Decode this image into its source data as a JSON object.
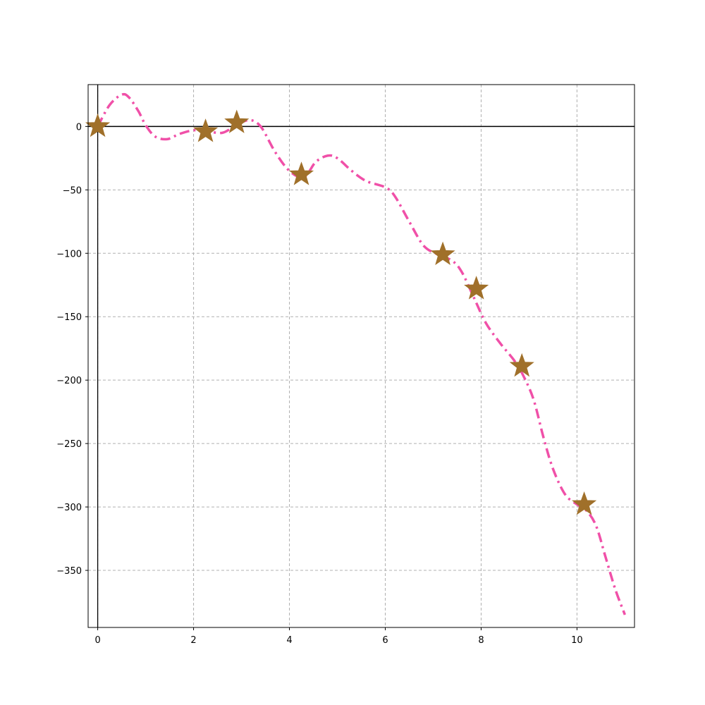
{
  "chart_data": {
    "type": "line",
    "title": "",
    "xlabel": "",
    "ylabel": "",
    "xlim": [
      -0.2,
      11.2
    ],
    "ylim": [
      -395,
      33
    ],
    "grid": true,
    "x_ticks": [
      0,
      2,
      4,
      6,
      8,
      10
    ],
    "y_ticks": [
      0,
      -50,
      -100,
      -150,
      -200,
      -250,
      -300,
      -350
    ],
    "x_tick_labels": [
      "0",
      "2",
      "4",
      "6",
      "8",
      "10"
    ],
    "y_tick_labels": [
      "0",
      "−50",
      "−100",
      "−150",
      "−200",
      "−250",
      "−300",
      "−350"
    ],
    "reference_lines": {
      "horizontal": 0,
      "vertical": 0
    },
    "series": [
      {
        "kind": "line",
        "style": "dash-dot",
        "color": "#f050a8",
        "x": [
          0,
          0.25,
          0.5,
          0.65,
          0.85,
          1.0,
          1.2,
          1.45,
          1.7,
          2.0,
          2.3,
          2.6,
          2.85,
          3.15,
          3.4,
          3.7,
          4.0,
          4.3,
          4.55,
          4.8,
          5.0,
          5.3,
          5.6,
          6.0,
          6.2,
          6.5,
          6.8,
          7.1,
          7.4,
          7.6,
          7.85,
          8.1,
          8.4,
          8.7,
          8.9,
          9.1,
          9.3,
          9.5,
          9.75,
          10.0,
          10.2,
          10.4,
          10.6,
          10.8,
          11.0
        ],
        "y": [
          0,
          17,
          25,
          23,
          12,
          1,
          -8,
          -10,
          -6,
          -3,
          -4,
          -5,
          0,
          5,
          0,
          -20,
          -35,
          -40,
          -28,
          -23,
          -25,
          -35,
          -43,
          -48,
          -55,
          -75,
          -94,
          -101,
          -106,
          -115,
          -135,
          -155,
          -171,
          -185,
          -198,
          -216,
          -245,
          -270,
          -290,
          -298,
          -303,
          -315,
          -340,
          -365,
          -385
        ]
      },
      {
        "kind": "scatter",
        "marker": "star",
        "color": "#a0702a",
        "x": [
          0,
          2.25,
          2.9,
          4.25,
          7.2,
          7.9,
          8.85,
          10.15
        ],
        "y": [
          0,
          -4,
          3,
          -38,
          -101,
          -128,
          -189,
          -298
        ]
      }
    ]
  }
}
